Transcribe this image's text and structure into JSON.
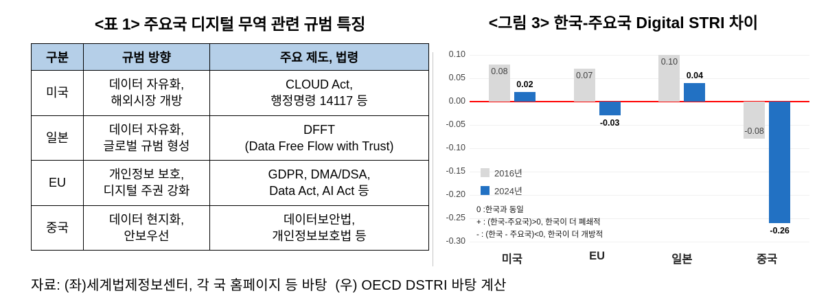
{
  "table_panel": {
    "title": "<표 1> 주요국 디지털 무역 관련 규범 특징",
    "header_bg": "#B5CFE8",
    "headers": [
      "구분",
      "규범 방향",
      "주요 제도, 법령"
    ],
    "rows": [
      {
        "country": "미국",
        "direction": "데이터 자유화,\n해외시장 개방",
        "laws": "CLOUD Act,\n행정명령 14117 등"
      },
      {
        "country": "일본",
        "direction": "데이터 자유화,\n글로벌 규범 형성",
        "laws": "DFFT\n(Data Free Flow with Trust)"
      },
      {
        "country": "EU",
        "direction": "개인정보 보호,\n디지털 주권 강화",
        "laws": "GDPR, DMA/DSA,\nData Act, AI Act 등"
      },
      {
        "country": "중국",
        "direction": "데이터 현지화,\n안보우선",
        "laws": "데이터보안법,\n개인정보보호법 등"
      }
    ]
  },
  "chart_panel": {
    "title": "<그림 3> 한국-주요국 Digital STRI 차이"
  },
  "chart_data": {
    "type": "bar",
    "title": "<그림 3> 한국-주요국 Digital STRI 차이",
    "categories": [
      "미국",
      "EU",
      "일본",
      "중국"
    ],
    "series": [
      {
        "name": "2016년",
        "color": "#D9D9D9",
        "values": [
          0.08,
          0.07,
          0.1,
          -0.08
        ],
        "labels": [
          "0.08",
          "0.07",
          "0.10",
          "-0.08"
        ]
      },
      {
        "name": "2024년",
        "color": "#2271C3",
        "values": [
          0.02,
          -0.03,
          0.04,
          -0.26
        ],
        "labels": [
          "0.02",
          "-0.03",
          "0.04",
          "-0.26"
        ]
      }
    ],
    "ylim": [
      -0.3,
      0.1
    ],
    "ytick_step": 0.05,
    "grid": false,
    "legend_position": "inside-left",
    "zero_line_color": "#FF0000",
    "annotations": [
      "0 :한국과 동일",
      "+ : (한국-주요국)>0, 한국이 더 폐쇄적",
      "- : (한국 - 주요국)<0, 한국이 더 개방적"
    ]
  },
  "caption": "자료: (좌)세계법제정보센터, 각 국 홈페이지 등 바탕  (우) OECD DSTRI 바탕 계산"
}
